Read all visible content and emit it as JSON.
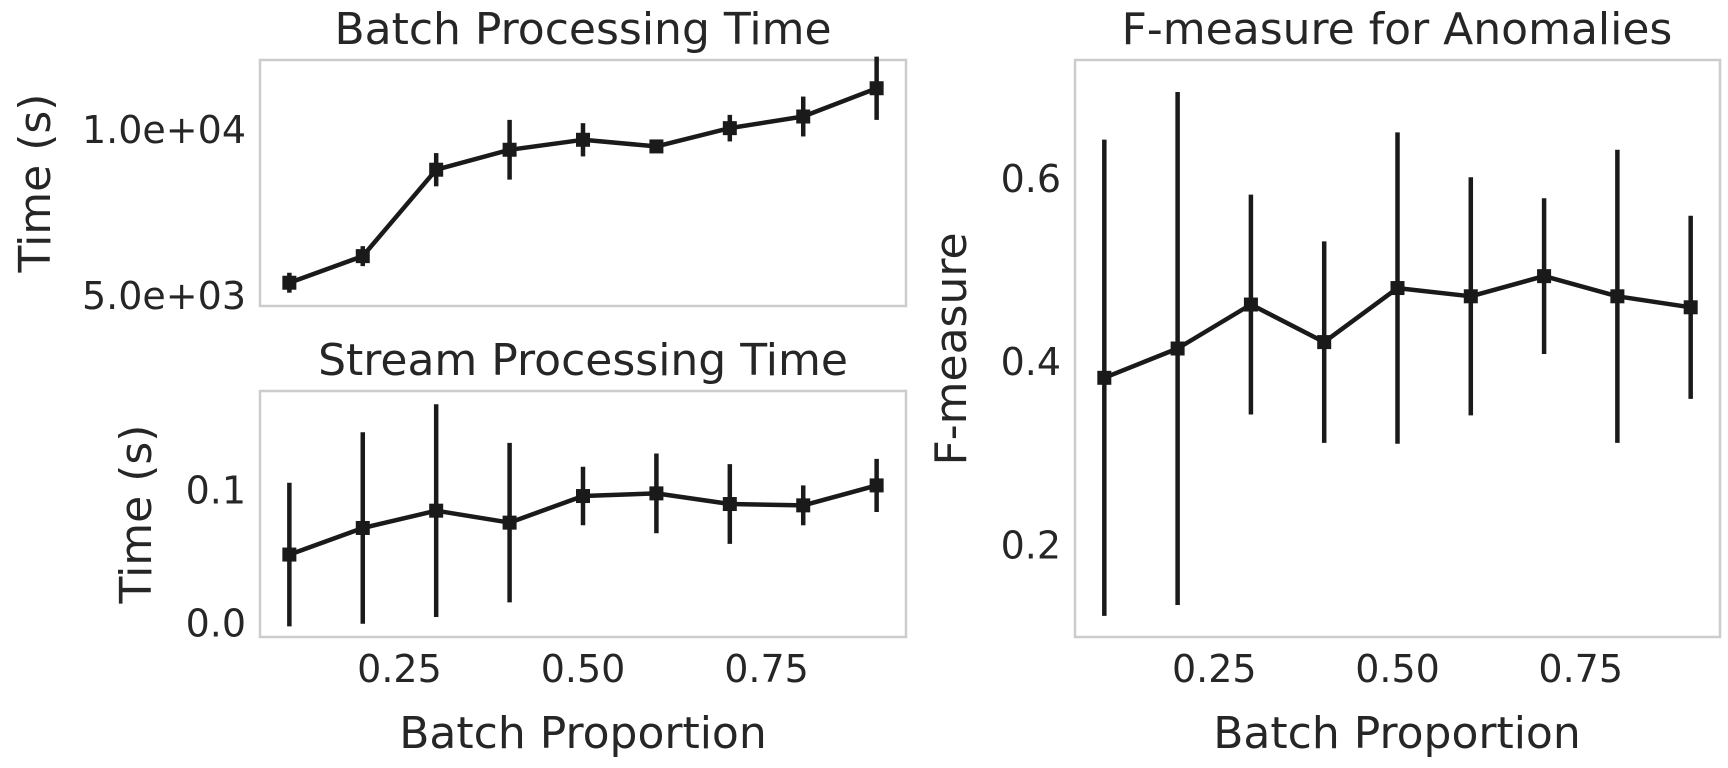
{
  "colors": {
    "series": "#1a1a1a",
    "frame": "#cccccc",
    "text": "#262626"
  },
  "chart_data": [
    {
      "id": "batch",
      "type": "line",
      "title": "Batch Processing Time",
      "xlabel": "",
      "ylabel": "Time (s)",
      "xlim": [
        0.06,
        0.94
      ],
      "ylim": [
        4700,
        12100
      ],
      "xticks": [],
      "yticks": [
        {
          "value": 5000,
          "label": "5.0e+03"
        },
        {
          "value": 10000,
          "label": "1.0e+04"
        }
      ],
      "x": [
        0.1,
        0.2,
        0.3,
        0.4,
        0.5,
        0.6,
        0.7,
        0.8,
        0.9
      ],
      "y": [
        5400,
        6200,
        8800,
        9400,
        9700,
        9500,
        10050,
        10400,
        11250
      ],
      "err": [
        300,
        300,
        500,
        900,
        500,
        150,
        400,
        600,
        950
      ],
      "grid": false,
      "marker": "square"
    },
    {
      "id": "stream",
      "type": "line",
      "title": "Stream Processing Time",
      "xlabel": "Batch Proportion",
      "ylabel": "Time (s)",
      "xlim": [
        0.06,
        0.94
      ],
      "ylim": [
        -0.01,
        0.175
      ],
      "xticks": [
        {
          "value": 0.25,
          "label": "0.25"
        },
        {
          "value": 0.5,
          "label": "0.50"
        },
        {
          "value": 0.75,
          "label": "0.75"
        }
      ],
      "yticks": [
        {
          "value": 0.0,
          "label": "0.0"
        },
        {
          "value": 0.1,
          "label": "0.1"
        }
      ],
      "x": [
        0.1,
        0.2,
        0.3,
        0.4,
        0.5,
        0.6,
        0.7,
        0.8,
        0.9
      ],
      "y": [
        0.052,
        0.072,
        0.085,
        0.076,
        0.096,
        0.098,
        0.09,
        0.089,
        0.104
      ],
      "err": [
        0.054,
        0.072,
        0.08,
        0.06,
        0.022,
        0.03,
        0.03,
        0.015,
        0.02
      ],
      "grid": false,
      "marker": "square"
    },
    {
      "id": "fmeasure",
      "type": "line",
      "title": "F-measure for Anomalies",
      "xlabel": "Batch Proportion",
      "ylabel": "F-measure",
      "xlim": [
        0.06,
        0.94
      ],
      "ylim": [
        0.1,
        0.73
      ],
      "xticks": [
        {
          "value": 0.25,
          "label": "0.25"
        },
        {
          "value": 0.5,
          "label": "0.50"
        },
        {
          "value": 0.75,
          "label": "0.75"
        }
      ],
      "yticks": [
        {
          "value": 0.2,
          "label": "0.2"
        },
        {
          "value": 0.4,
          "label": "0.4"
        },
        {
          "value": 0.6,
          "label": "0.6"
        }
      ],
      "x": [
        0.1,
        0.2,
        0.3,
        0.4,
        0.5,
        0.6,
        0.7,
        0.8,
        0.9
      ],
      "y": [
        0.383,
        0.415,
        0.463,
        0.422,
        0.481,
        0.472,
        0.494,
        0.472,
        0.46
      ],
      "err": [
        0.26,
        0.28,
        0.12,
        0.11,
        0.17,
        0.13,
        0.085,
        0.16,
        0.1
      ],
      "grid": false,
      "marker": "square"
    }
  ]
}
